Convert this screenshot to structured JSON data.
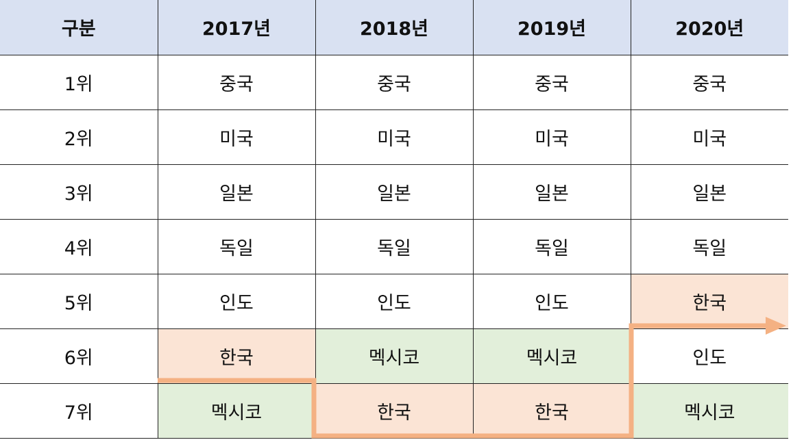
{
  "table": {
    "header": [
      "구분",
      "2017년",
      "2018년",
      "2019년",
      "2020년"
    ],
    "rows": [
      {
        "rank": "1위",
        "cells": [
          {
            "text": "중국",
            "highlight": ""
          },
          {
            "text": "중국",
            "highlight": ""
          },
          {
            "text": "중국",
            "highlight": ""
          },
          {
            "text": "중국",
            "highlight": ""
          }
        ]
      },
      {
        "rank": "2위",
        "cells": [
          {
            "text": "미국",
            "highlight": ""
          },
          {
            "text": "미국",
            "highlight": ""
          },
          {
            "text": "미국",
            "highlight": ""
          },
          {
            "text": "미국",
            "highlight": ""
          }
        ]
      },
      {
        "rank": "3위",
        "cells": [
          {
            "text": "일본",
            "highlight": ""
          },
          {
            "text": "일본",
            "highlight": ""
          },
          {
            "text": "일본",
            "highlight": ""
          },
          {
            "text": "일본",
            "highlight": ""
          }
        ]
      },
      {
        "rank": "4위",
        "cells": [
          {
            "text": "독일",
            "highlight": ""
          },
          {
            "text": "독일",
            "highlight": ""
          },
          {
            "text": "독일",
            "highlight": ""
          },
          {
            "text": "독일",
            "highlight": ""
          }
        ]
      },
      {
        "rank": "5위",
        "cells": [
          {
            "text": "인도",
            "highlight": ""
          },
          {
            "text": "인도",
            "highlight": ""
          },
          {
            "text": "인도",
            "highlight": ""
          },
          {
            "text": "한국",
            "highlight": "korea"
          }
        ]
      },
      {
        "rank": "6위",
        "cells": [
          {
            "text": "한국",
            "highlight": "korea"
          },
          {
            "text": "멕시코",
            "highlight": "mexico"
          },
          {
            "text": "멕시코",
            "highlight": "mexico"
          },
          {
            "text": "인도",
            "highlight": ""
          }
        ]
      },
      {
        "rank": "7위",
        "cells": [
          {
            "text": "멕시코",
            "highlight": "mexico"
          },
          {
            "text": "한국",
            "highlight": "korea"
          },
          {
            "text": "한국",
            "highlight": "korea"
          },
          {
            "text": "멕시코",
            "highlight": "mexico"
          }
        ]
      }
    ]
  },
  "colors": {
    "header_bg": "#d9e1f2",
    "korea_highlight": "#fbe4d5",
    "mexico_highlight": "#e2efda",
    "trend_line": "#f4b183"
  }
}
